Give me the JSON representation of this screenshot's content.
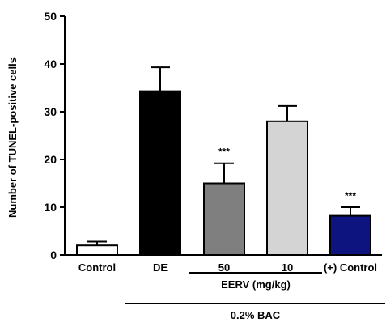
{
  "chart_data": {
    "type": "bar",
    "title": "",
    "ylabel": "Number of TUNEL-positive cells",
    "xlabel": "",
    "ylim": [
      0,
      50
    ],
    "yticks": [
      0,
      10,
      20,
      30,
      40,
      50
    ],
    "categories": [
      "Control",
      "DE",
      "50",
      "10",
      "(+) Control"
    ],
    "values": [
      2.0,
      34.3,
      15.0,
      28.0,
      8.2
    ],
    "errors": [
      0.8,
      5.0,
      4.2,
      3.2,
      1.8
    ],
    "annotations": [
      "",
      "",
      "***",
      "",
      "***"
    ],
    "bar_colors": [
      "#ffffff",
      "#000000",
      "#7f7f7f",
      "#d4d4d4",
      "#0d137f"
    ],
    "groups": [
      {
        "label": "EERV (mg/kg)",
        "from": 2,
        "to": 3,
        "level": 1
      },
      {
        "label": "0.2% BAC",
        "from": 1,
        "to": 4,
        "level": 2
      }
    ],
    "grid": false,
    "legend": "none"
  }
}
